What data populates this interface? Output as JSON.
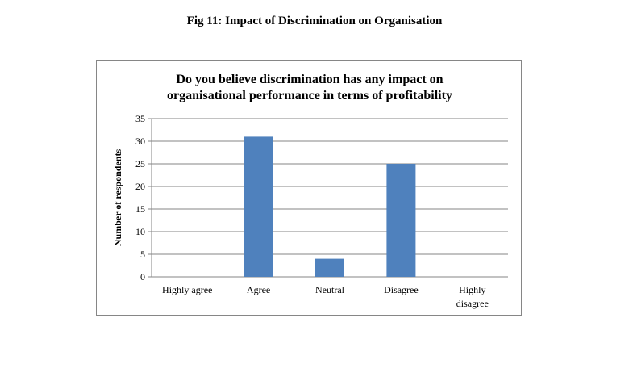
{
  "figure": {
    "caption": "Fig 11: Impact of Discrimination on Organisation"
  },
  "chart_data": {
    "type": "bar",
    "title_lines": [
      "Do you believe discrimination has any impact on",
      "organisational performance in terms of profitability"
    ],
    "categories": [
      [
        "Highly agree"
      ],
      [
        "Agree"
      ],
      [
        "Neutral"
      ],
      [
        "Disagree"
      ],
      [
        "Highly",
        "disagree"
      ]
    ],
    "values": [
      0,
      31,
      4,
      25,
      0
    ],
    "ylabel": "Number of respondents",
    "xlabel": "",
    "ylim": [
      0,
      35
    ],
    "yticks": [
      0,
      5,
      10,
      15,
      20,
      25,
      30,
      35
    ],
    "grid": true,
    "bar_color": "#4f81bd",
    "grid_color": "#868686",
    "legend": "none"
  }
}
